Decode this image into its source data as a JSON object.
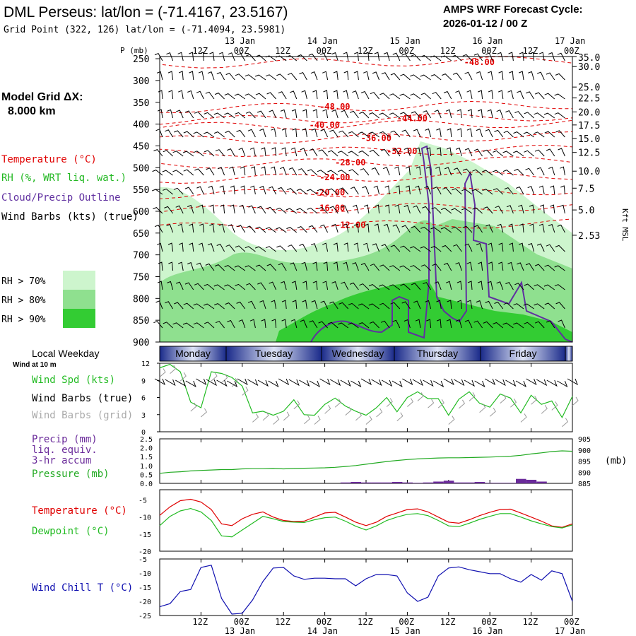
{
  "header": {
    "title": "DML Perseus:  lat/lon = (-71.4167, 23.5167)",
    "subtitle": "Grid Point (322, 126) lat/lon = (-71.4094, 23.5981)",
    "cycle_label": "AMPS WRF Forecast Cycle:",
    "cycle_value": "2026-01-12 / 00  Z"
  },
  "left_panel": {
    "model_grid_label": "Model Grid ΔX:",
    "model_grid_value": "8.000 km",
    "legend": [
      {
        "text": "Temperature (°C)",
        "color": "#e00000"
      },
      {
        "text": "RH (%, WRT liq. wat.)",
        "color": "#22b822"
      },
      {
        "text": "Cloud/Precip Outline",
        "color": "#6030a0"
      },
      {
        "text": "Wind Barbs (kts) (true)",
        "color": "#000000"
      }
    ],
    "rh_legend": [
      {
        "text": "RH > 70%",
        "color": "#cdf5cd"
      },
      {
        "text": "RH > 80%",
        "color": "#8fe08f"
      },
      {
        "text": "RH > 90%",
        "color": "#33cc33"
      }
    ]
  },
  "time_axis": {
    "labels": [
      "12Z",
      "00Z",
      "12Z",
      "00Z",
      "12Z",
      "00Z",
      "12Z",
      "00Z",
      "12Z",
      "00Z"
    ],
    "dates": [
      "13 Jan",
      "14 Jan",
      "15 Jan",
      "16 Jan",
      "17 Jan"
    ],
    "weekdays": [
      "Monday",
      "Tuesday",
      "Wednesday",
      "Thursday",
      "Friday"
    ],
    "weekday_title": "Local Weekday",
    "wind_note": "Wind at 10 m"
  },
  "colors": {
    "temperature": "#e00000",
    "dewpoint": "#22bb22",
    "pressure": "#22aa22",
    "precip": "#6a2a9a",
    "wind_chill": "#1010b0",
    "wind_speed": "#22bb22",
    "rh70": "#cdf5cd",
    "rh80": "#8fe08f",
    "rh90": "#33cc33",
    "cloud_outline": "#6030a0"
  },
  "chart_data": [
    {
      "type": "heatmap",
      "name": "cross-section",
      "y_axis_label": "P (mb)",
      "pressure_levels": [
        250,
        300,
        350,
        400,
        450,
        500,
        550,
        600,
        650,
        700,
        750,
        800,
        850,
        900
      ],
      "ylim": [
        245,
        900
      ],
      "height_axis_label": "Kft MSL",
      "height_ticks": [
        "35.0",
        "30.0",
        "25.0",
        "22.5",
        "20.0",
        "17.5",
        "15.0",
        "12.5",
        "10.0",
        "7.5",
        "5.0",
        "2.53"
      ],
      "height_tick_levels": [
        245,
        268,
        315,
        340,
        372,
        402,
        433,
        465,
        508,
        547,
        597,
        655
      ],
      "isotherm_labels": [
        {
          "text": "-48.00",
          "t": 31,
          "p": 258
        },
        {
          "text": "-48.00",
          "t": 17,
          "p": 360
        },
        {
          "text": "-44.00",
          "t": 24.5,
          "p": 387
        },
        {
          "text": "-40.00",
          "t": 16,
          "p": 402
        },
        {
          "text": "-36.00",
          "t": 21,
          "p": 432
        },
        {
          "text": "-32.00",
          "t": 23.5,
          "p": 462
        },
        {
          "text": "-28.00",
          "t": 18.5,
          "p": 488
        },
        {
          "text": "-24.00",
          "t": 17,
          "p": 522
        },
        {
          "text": "-20.00",
          "t": 16.5,
          "p": 557
        },
        {
          "text": "-16.00",
          "t": 16.5,
          "p": 593
        },
        {
          "text": "-12.00",
          "t": 18.5,
          "p": 632
        }
      ],
      "isotherm_levels": [
        -48,
        -48,
        -44,
        -40,
        -36,
        -32,
        -28,
        -24,
        -20,
        -16,
        -12
      ]
    },
    {
      "type": "line",
      "name": "wind",
      "ylabel": "Wind Spd (kts)",
      "labels": [
        "Wind Spd (kts)",
        "Wind Barbs (true)",
        "Wind Barbs (grid)"
      ],
      "ylim": [
        0,
        12
      ],
      "yticks": [
        0,
        3,
        6,
        9,
        12
      ],
      "x": [
        0,
        1,
        2,
        3,
        4,
        5,
        6,
        7,
        8,
        9,
        10,
        11,
        12,
        13,
        14,
        15,
        16,
        17,
        18,
        19,
        20,
        21,
        22,
        23,
        24,
        25,
        26,
        27,
        28,
        29,
        30,
        31,
        32,
        33,
        34,
        35,
        36,
        37,
        38,
        39,
        40
      ],
      "values": [
        11.2,
        11.8,
        10.5,
        5.2,
        4.2,
        10.5,
        10.2,
        9.5,
        8.0,
        3.3,
        3.6,
        2.9,
        3.6,
        5.6,
        3.0,
        2.9,
        4.8,
        5.9,
        4.5,
        3.6,
        2.9,
        4.2,
        6.0,
        3.5,
        6.0,
        7.0,
        5.8,
        5.8,
        2.9,
        5.7,
        7.0,
        5.0,
        4.3,
        6.6,
        5.9,
        3.3,
        6.4,
        4.8,
        5.4,
        2.5,
        6.2
      ]
    },
    {
      "type": "area",
      "name": "precip",
      "ylabel": "Precip (mm)",
      "labels": [
        "Precip (mm)",
        "liq. equiv.",
        "3-hr accum",
        "Pressure (mb)"
      ],
      "ylim": [
        0,
        2.5
      ],
      "yticks": [
        "0.0",
        "0.5",
        "1.0",
        "1.5",
        "2.0",
        "2.5"
      ],
      "pressure_ylim": [
        885,
        905
      ],
      "pressure_yticks": [
        885,
        890,
        895,
        900,
        905
      ],
      "pressure_unit": "(mb)",
      "x": [
        0,
        1,
        2,
        3,
        4,
        5,
        6,
        7,
        8,
        9,
        10,
        11,
        12,
        13,
        14,
        15,
        16,
        17,
        18,
        19,
        20,
        21,
        22,
        23,
        24,
        25,
        26,
        27,
        28,
        29,
        30,
        31,
        32,
        33,
        34,
        35,
        36,
        37,
        38,
        39,
        40
      ],
      "precip": [
        0,
        0,
        0,
        0,
        0,
        0,
        0,
        0,
        0,
        0,
        0,
        0,
        0,
        0,
        0,
        0,
        0,
        0,
        0.05,
        0.08,
        0.05,
        0.05,
        0.05,
        0.08,
        0.05,
        0.03,
        0.05,
        0.1,
        0.15,
        0.05,
        0.05,
        0.08,
        0.03,
        0.03,
        0.03,
        0.25,
        0.2,
        0.1,
        0,
        0,
        0
      ],
      "pressure": [
        889.5,
        890,
        890.2,
        890.6,
        890.8,
        891,
        891.2,
        891.2,
        891.5,
        891.6,
        891.6,
        891.7,
        891.5,
        891.7,
        891.8,
        891.9,
        892,
        892.2,
        892.6,
        893,
        893.6,
        894.2,
        894.8,
        895.3,
        895.7,
        896,
        896.2,
        896.4,
        896.5,
        896.5,
        896.6,
        896.7,
        896.8,
        897,
        897.2,
        897.6,
        898.2,
        898.7,
        899.3,
        899.6,
        899.4
      ]
    },
    {
      "type": "line",
      "name": "temperature",
      "labels": [
        "Temperature (°C)",
        "Dewpoint (°C)"
      ],
      "ylim": [
        -20,
        -2
      ],
      "yticks": [
        -20,
        -15,
        -10,
        -5
      ],
      "x": [
        0,
        1,
        2,
        3,
        4,
        5,
        6,
        7,
        8,
        9,
        10,
        11,
        12,
        13,
        14,
        15,
        16,
        17,
        18,
        19,
        20,
        21,
        22,
        23,
        24,
        25,
        26,
        27,
        28,
        29,
        30,
        31,
        32,
        33,
        34,
        35,
        36,
        37,
        38,
        39,
        40
      ],
      "series": [
        {
          "name": "Temperature",
          "values": [
            -9.5,
            -7.0,
            -5.2,
            -4.8,
            -5.6,
            -7.8,
            -12.0,
            -12.5,
            -10.5,
            -9.2,
            -8.5,
            -10.0,
            -11.0,
            -11.3,
            -11.2,
            -10.0,
            -8.8,
            -8.6,
            -10.0,
            -11.5,
            -12.5,
            -11.5,
            -9.8,
            -8.8,
            -7.8,
            -7.6,
            -8.5,
            -10.0,
            -11.5,
            -11.8,
            -10.8,
            -9.6,
            -8.6,
            -7.8,
            -7.7,
            -8.8,
            -10.0,
            -11.2,
            -12.6,
            -13.0,
            -12.0
          ]
        },
        {
          "name": "Dewpoint",
          "values": [
            -12.5,
            -9.8,
            -8.2,
            -7.5,
            -8.5,
            -11.0,
            -15.5,
            -15.8,
            -13.8,
            -11.8,
            -9.8,
            -10.5,
            -11.3,
            -11.5,
            -11.6,
            -10.8,
            -10.2,
            -10.0,
            -11.2,
            -12.7,
            -13.8,
            -12.6,
            -11.0,
            -10.0,
            -9.2,
            -9.0,
            -9.6,
            -11.0,
            -12.6,
            -12.8,
            -11.8,
            -10.7,
            -9.8,
            -9.0,
            -9.0,
            -10.0,
            -11.1,
            -12.0,
            -12.8,
            -13.2,
            -12.3
          ]
        }
      ]
    },
    {
      "type": "line",
      "name": "wind-chill",
      "labels": [
        "Wind Chill T (°C)"
      ],
      "ylim": [
        -25,
        -5
      ],
      "yticks": [
        -25,
        -20,
        -15,
        -10,
        -5
      ],
      "x": [
        0,
        1,
        2,
        3,
        4,
        5,
        6,
        7,
        8,
        9,
        10,
        11,
        12,
        13,
        14,
        15,
        16,
        17,
        18,
        19,
        20,
        21,
        22,
        23,
        24,
        25,
        26,
        27,
        28,
        29,
        30,
        31,
        32,
        33,
        34,
        35,
        36,
        37,
        38,
        39,
        40
      ],
      "values": [
        -21.9,
        -20.8,
        -16.5,
        -15.8,
        -8.0,
        -7.2,
        -19.0,
        -24.5,
        -24.2,
        -19.5,
        -13.0,
        -8.2,
        -8.0,
        -11.0,
        -12.2,
        -11.8,
        -11.8,
        -12.0,
        -12.0,
        -14.5,
        -12.0,
        -10.5,
        -10.5,
        -11.0,
        -17.0,
        -20.0,
        -18.5,
        -11.0,
        -8.2,
        -7.8,
        -8.8,
        -9.5,
        -10.2,
        -10.2,
        -12.0,
        -13.2,
        -10.5,
        -12.5,
        -9.2,
        -10.2,
        -20.0
      ]
    }
  ]
}
